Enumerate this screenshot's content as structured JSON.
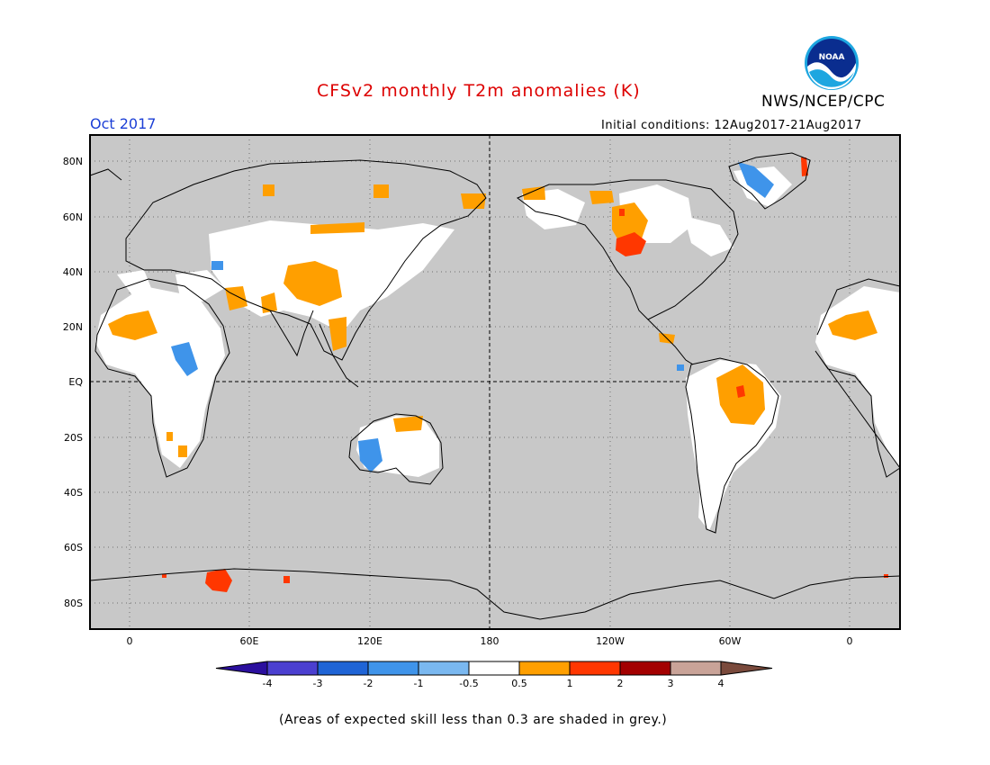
{
  "header": {
    "title": "CFSv2 monthly T2m anomalies (K)",
    "agency": "NWS/NCEP/CPC",
    "month": "Oct 2017",
    "initial_conditions": "Initial conditions: 12Aug2017-21Aug2017"
  },
  "logo": {
    "text": "NOAA",
    "icon": "noaa-logo-icon"
  },
  "map": {
    "projection": "cylindrical equidistant, centered on 180",
    "background_color": "#c8c8c8",
    "lat_labels": [
      "80N",
      "60N",
      "40N",
      "20N",
      "EQ",
      "20S",
      "40S",
      "60S",
      "80S"
    ],
    "lon_labels": [
      "0",
      "60E",
      "120E",
      "180",
      "120W",
      "60W",
      "0"
    ],
    "dashed_lines": [
      "equator",
      "dateline"
    ]
  },
  "colorbar": {
    "labels": [
      "-4",
      "-3",
      "-2",
      "-1",
      "-0.5",
      "0.5",
      "1",
      "2",
      "3",
      "4"
    ],
    "colors": [
      "#2b0f9e",
      "#4b3fd0",
      "#1f64d6",
      "#3f94ea",
      "#7ab8f0",
      "#ffffff",
      "#ff9f00",
      "#ff3700",
      "#a30000",
      "#c9a398",
      "#7a4a3c"
    ]
  },
  "footnote": "(Areas of expected skill less than 0.3 are shaded in grey.)"
}
